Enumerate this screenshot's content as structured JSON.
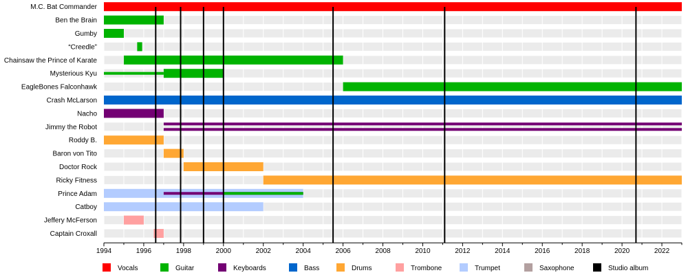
{
  "chart_data": {
    "type": "timeline",
    "title": "",
    "xlabel": "",
    "ylabel": "",
    "xlim": [
      1994,
      2023
    ],
    "x_ticks": [
      1994,
      1996,
      1998,
      2000,
      2002,
      2004,
      2006,
      2008,
      2010,
      2012,
      2014,
      2016,
      2018,
      2020,
      2022
    ],
    "grid": "horizontal row bands and vertical year gridlines",
    "legend_position": "bottom",
    "colors": {
      "Vocals": "#ff0000",
      "Guitar": "#00b300",
      "Keyboards": "#730073",
      "Bass": "#0066cc",
      "Drums": "#ffa733",
      "Trombone": "#ffa0a0",
      "Trumpet": "#b3ccff",
      "Saxophone": "#b3a0a0",
      "Studio album": "#000000"
    },
    "legend": [
      "Vocals",
      "Guitar",
      "Keyboards",
      "Bass",
      "Drums",
      "Trombone",
      "Trumpet",
      "Saxophone",
      "Studio album"
    ],
    "members": [
      {
        "name": "M.C. Bat Commander",
        "bars": [
          {
            "role": "Vocals",
            "start": 1994,
            "end": 2023
          }
        ]
      },
      {
        "name": "Ben the Brain",
        "bars": [
          {
            "role": "Guitar",
            "start": 1994,
            "end": 1997
          }
        ]
      },
      {
        "name": "Gumby",
        "bars": [
          {
            "role": "Guitar",
            "start": 1994,
            "end": 1995
          }
        ]
      },
      {
        "name": "“Creedle”",
        "bars": [
          {
            "role": "Guitar",
            "start": 1995.67,
            "end": 1995.92
          }
        ]
      },
      {
        "name": "Chainsaw the Prince of Karate",
        "bars": [
          {
            "role": "Guitar",
            "start": 1995,
            "end": 2006
          }
        ]
      },
      {
        "name": "Mysterious Kyu",
        "bars": [
          {
            "role": "Guitar",
            "start": 1994,
            "end": 1997,
            "thin": true
          },
          {
            "role": "Guitar",
            "start": 1997,
            "end": 2000
          }
        ]
      },
      {
        "name": "EagleBones Falconhawk",
        "bars": [
          {
            "role": "Guitar",
            "start": 2006,
            "end": 2023
          }
        ]
      },
      {
        "name": "Crash McLarson",
        "bars": [
          {
            "role": "Bass",
            "start": 1994,
            "end": 2023
          }
        ]
      },
      {
        "name": "Nacho",
        "bars": [
          {
            "role": "Keyboards",
            "start": 1994,
            "end": 1997
          }
        ]
      },
      {
        "name": "Jimmy the Robot",
        "bars": [
          {
            "role": "Keyboards",
            "start": 1997,
            "end": 2023,
            "split": true
          }
        ]
      },
      {
        "name": "Roddy B.",
        "bars": [
          {
            "role": "Drums",
            "start": 1994,
            "end": 1997
          }
        ]
      },
      {
        "name": "Baron von Tito",
        "bars": [
          {
            "role": "Drums",
            "start": 1997,
            "end": 1998
          }
        ]
      },
      {
        "name": "Doctor Rock",
        "bars": [
          {
            "role": "Drums",
            "start": 1998,
            "end": 2002
          }
        ]
      },
      {
        "name": "Ricky Fitness",
        "bars": [
          {
            "role": "Drums",
            "start": 2002,
            "end": 2023
          }
        ]
      },
      {
        "name": "Prince Adam",
        "bars": [
          {
            "role": "Trumpet",
            "start": 1994,
            "end": 2004
          },
          {
            "role": "Keyboards",
            "start": 1997,
            "end": 2004,
            "thin": true
          },
          {
            "role": "Guitar",
            "start": 2000,
            "end": 2004,
            "thin": true
          }
        ]
      },
      {
        "name": "Catboy",
        "bars": [
          {
            "role": "Trumpet",
            "start": 1994,
            "end": 2002
          }
        ]
      },
      {
        "name": "Jeffery McFerson",
        "bars": [
          {
            "role": "Trombone",
            "start": 1995,
            "end": 1996
          }
        ]
      },
      {
        "name": "Captain Croxall",
        "bars": [
          {
            "role": "Trombone",
            "start": 1996.5,
            "end": 1997
          }
        ]
      }
    ],
    "albums": [
      1996.6,
      1997.85,
      1999,
      2000,
      2005.5,
      2011.1,
      2020.7
    ]
  }
}
